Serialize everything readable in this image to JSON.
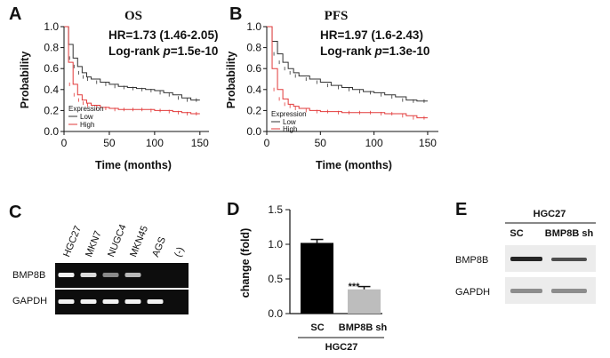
{
  "panels": {
    "A": {
      "letter": "A",
      "title": "OS",
      "hr_text": "HR=1.73 (1.46-2.05)",
      "logrank_prefix": "Log-rank ",
      "logrank_p": "p",
      "logrank_suffix": "=1.5e-10",
      "legend_title": "Expression",
      "legend_low": "Low",
      "legend_high": "High"
    },
    "B": {
      "letter": "B",
      "title": "PFS",
      "hr_text": "HR=1.97 (1.6-2.43)",
      "logrank_prefix": "Log-rank ",
      "logrank_p": "p",
      "logrank_suffix": "=1.3e-10",
      "legend_title": "Expression",
      "legend_low": "Low",
      "legend_high": "High"
    },
    "C": {
      "letter": "C",
      "lanes": [
        "HGC27",
        "MKN7",
        "NUGC4",
        "MKN45",
        "AGS",
        "(-)"
      ],
      "rows": [
        "BMP8B",
        "GAPDH"
      ],
      "bmp8b_intensity": [
        1.0,
        0.9,
        0.55,
        0.75,
        0.0,
        0.0
      ],
      "gapdh_intensity": [
        1.0,
        1.0,
        1.0,
        1.0,
        1.0,
        0.0
      ]
    },
    "D": {
      "letter": "D",
      "significance": "***",
      "group_label": "HGC27"
    },
    "E": {
      "letter": "E",
      "group_label": "HGC27",
      "lanes": [
        "SC",
        "BMP8B  sh"
      ],
      "rows": [
        "BMP8B",
        "GAPDH"
      ]
    }
  },
  "colors": {
    "low": "#333333",
    "high": "#e23a3a",
    "bar_sc": "#000000",
    "bar_sh": "#bdbdbd",
    "gel_bg": "#0d0d0d",
    "band": "#f2f2f2",
    "blot_bg": "#ececec",
    "blot_band": "#1a1a1a"
  },
  "chart_data": [
    {
      "type": "line",
      "title": "OS",
      "xlabel": "Time (months)",
      "ylabel": "Probability",
      "xlim": [
        0,
        160
      ],
      "ylim": [
        0,
        1.0
      ],
      "xticks": [
        0,
        50,
        100,
        150
      ],
      "yticks": [
        0.0,
        0.2,
        0.4,
        0.6,
        0.8,
        1.0
      ],
      "series": [
        {
          "name": "Low",
          "x": [
            0,
            5,
            10,
            15,
            20,
            25,
            30,
            40,
            50,
            60,
            70,
            80,
            90,
            100,
            110,
            120,
            130,
            140,
            150
          ],
          "values": [
            1.0,
            0.83,
            0.7,
            0.62,
            0.56,
            0.52,
            0.5,
            0.47,
            0.45,
            0.43,
            0.42,
            0.41,
            0.4,
            0.39,
            0.37,
            0.35,
            0.32,
            0.3,
            0.3
          ]
        },
        {
          "name": "High",
          "x": [
            0,
            5,
            10,
            15,
            20,
            25,
            30,
            40,
            50,
            60,
            70,
            80,
            90,
            100,
            110,
            120,
            130,
            140,
            150
          ],
          "values": [
            1.0,
            0.66,
            0.45,
            0.35,
            0.3,
            0.27,
            0.25,
            0.23,
            0.22,
            0.21,
            0.21,
            0.21,
            0.21,
            0.2,
            0.2,
            0.19,
            0.18,
            0.17,
            0.17
          ]
        }
      ]
    },
    {
      "type": "line",
      "title": "PFS",
      "xlabel": "Time (months)",
      "ylabel": "Probability",
      "xlim": [
        0,
        160
      ],
      "ylim": [
        0,
        1.0
      ],
      "xticks": [
        0,
        50,
        100,
        150
      ],
      "yticks": [
        0.0,
        0.2,
        0.4,
        0.6,
        0.8,
        1.0
      ],
      "series": [
        {
          "name": "Low",
          "x": [
            0,
            5,
            10,
            15,
            20,
            25,
            30,
            40,
            50,
            60,
            70,
            80,
            90,
            100,
            110,
            120,
            130,
            140,
            150
          ],
          "values": [
            1.0,
            0.86,
            0.74,
            0.66,
            0.6,
            0.56,
            0.53,
            0.5,
            0.47,
            0.44,
            0.42,
            0.4,
            0.38,
            0.37,
            0.35,
            0.33,
            0.3,
            0.29,
            0.29
          ]
        },
        {
          "name": "High",
          "x": [
            0,
            5,
            10,
            15,
            20,
            25,
            30,
            40,
            50,
            60,
            70,
            80,
            90,
            100,
            110,
            120,
            130,
            140,
            150
          ],
          "values": [
            1.0,
            0.6,
            0.4,
            0.31,
            0.26,
            0.24,
            0.22,
            0.2,
            0.19,
            0.19,
            0.18,
            0.18,
            0.18,
            0.18,
            0.17,
            0.17,
            0.15,
            0.13,
            0.13
          ]
        }
      ]
    },
    {
      "type": "bar",
      "categories": [
        "SC",
        "BMP8B  sh"
      ],
      "values": [
        1.02,
        0.35
      ],
      "errors": [
        0.05,
        0.04
      ],
      "ylabel": "change (fold)",
      "ylim": [
        0,
        1.5
      ],
      "yticks": [
        0.0,
        0.5,
        1.0,
        1.5
      ]
    }
  ]
}
